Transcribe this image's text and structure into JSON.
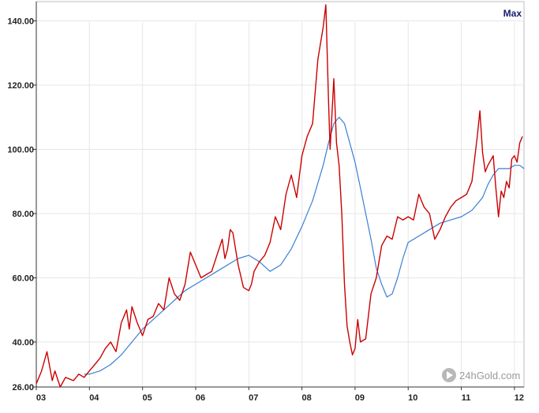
{
  "chart_data": {
    "type": "line",
    "title": "",
    "xlabel": "",
    "ylabel": "",
    "range_label": "Max",
    "watermark": "24hGold.com",
    "grid": true,
    "xlim": [
      2003.0,
      2012.18
    ],
    "ylim": [
      26,
      146
    ],
    "y_ticks": [
      {
        "value": 26,
        "label": "26.00"
      },
      {
        "value": 40,
        "label": "40.00"
      },
      {
        "value": 60,
        "label": "60.00"
      },
      {
        "value": 80,
        "label": "80.00"
      },
      {
        "value": 100,
        "label": "100.00"
      },
      {
        "value": 120,
        "label": "120.00"
      },
      {
        "value": 140,
        "label": "140.00"
      }
    ],
    "x_ticks": [
      {
        "value": 2003,
        "label": "03"
      },
      {
        "value": 2004,
        "label": "04"
      },
      {
        "value": 2005,
        "label": "05"
      },
      {
        "value": 2006,
        "label": "06"
      },
      {
        "value": 2007,
        "label": "07"
      },
      {
        "value": 2008,
        "label": "08"
      },
      {
        "value": 2009,
        "label": "09"
      },
      {
        "value": 2010,
        "label": "10"
      },
      {
        "value": 2011,
        "label": "11"
      },
      {
        "value": 2012,
        "label": "12"
      }
    ],
    "colors": {
      "price": "#cc0000",
      "moving_average": "#3a7fd5",
      "grid": "#e6e6e6",
      "axis": "#333333"
    },
    "series": [
      {
        "key": "price",
        "x": [
          2003.0,
          2003.1,
          2003.2,
          2003.3,
          2003.35,
          2003.45,
          2003.55,
          2003.7,
          2003.8,
          2003.9,
          2004.0,
          2004.1,
          2004.2,
          2004.3,
          2004.4,
          2004.5,
          2004.6,
          2004.7,
          2004.75,
          2004.8,
          2004.9,
          2004.95,
          2005.0,
          2005.1,
          2005.2,
          2005.3,
          2005.4,
          2005.5,
          2005.6,
          2005.7,
          2005.8,
          2005.9,
          2006.0,
          2006.1,
          2006.2,
          2006.3,
          2006.4,
          2006.5,
          2006.55,
          2006.6,
          2006.65,
          2006.7,
          2006.8,
          2006.9,
          2007.0,
          2007.05,
          2007.1,
          2007.2,
          2007.3,
          2007.4,
          2007.5,
          2007.6,
          2007.7,
          2007.8,
          2007.9,
          2008.0,
          2008.1,
          2008.2,
          2008.3,
          2008.4,
          2008.45,
          2008.5,
          2008.53,
          2008.6,
          2008.65,
          2008.7,
          2008.75,
          2008.8,
          2008.85,
          2008.9,
          2008.95,
          2009.0,
          2009.05,
          2009.1,
          2009.2,
          2009.3,
          2009.4,
          2009.5,
          2009.6,
          2009.7,
          2009.8,
          2009.9,
          2010.0,
          2010.1,
          2010.2,
          2010.3,
          2010.4,
          2010.5,
          2010.6,
          2010.7,
          2010.8,
          2010.9,
          2011.0,
          2011.1,
          2011.2,
          2011.25,
          2011.3,
          2011.35,
          2011.4,
          2011.45,
          2011.5,
          2011.6,
          2011.65,
          2011.7,
          2011.75,
          2011.8,
          2011.85,
          2011.9,
          2011.95,
          2012.0,
          2012.05,
          2012.1,
          2012.15
        ],
        "y": [
          27,
          31,
          37,
          28,
          31,
          26,
          29,
          28,
          30,
          29,
          31,
          33,
          35,
          38,
          40,
          37,
          46,
          50,
          44,
          51,
          46,
          44,
          42,
          47,
          48,
          52,
          50,
          60,
          55,
          53,
          58,
          68,
          64,
          60,
          61,
          62,
          67,
          72,
          66,
          69,
          75,
          74,
          64,
          57,
          56,
          58,
          62,
          65,
          67,
          71,
          79,
          75,
          86,
          92,
          85,
          98,
          104,
          108,
          128,
          138,
          145,
          115,
          100,
          122,
          102,
          95,
          80,
          58,
          45,
          40,
          36,
          38,
          47,
          40,
          41,
          55,
          60,
          70,
          73,
          72,
          79,
          78,
          79,
          78,
          86,
          82,
          80,
          72,
          75,
          79,
          82,
          84,
          85,
          86,
          90,
          97,
          104,
          112,
          99,
          93,
          95,
          98,
          88,
          79,
          87,
          85,
          90,
          88,
          97,
          98,
          96,
          102,
          104
        ]
      },
      {
        "key": "moving_average",
        "x": [
          2003.9,
          2004.0,
          2004.2,
          2004.4,
          2004.6,
          2004.8,
          2005.0,
          2005.2,
          2005.4,
          2005.6,
          2005.8,
          2006.0,
          2006.2,
          2006.4,
          2006.6,
          2006.8,
          2007.0,
          2007.2,
          2007.4,
          2007.6,
          2007.8,
          2008.0,
          2008.2,
          2008.4,
          2008.5,
          2008.6,
          2008.7,
          2008.8,
          2008.9,
          2009.0,
          2009.1,
          2009.2,
          2009.3,
          2009.4,
          2009.5,
          2009.6,
          2009.7,
          2009.8,
          2009.9,
          2010.0,
          2010.2,
          2010.4,
          2010.6,
          2010.8,
          2011.0,
          2011.2,
          2011.4,
          2011.5,
          2011.6,
          2011.7,
          2011.8,
          2011.9,
          2012.0,
          2012.1,
          2012.18
        ],
        "y": [
          30,
          30,
          31,
          33,
          36,
          40,
          44,
          47,
          50,
          53,
          56,
          58,
          60,
          62,
          64,
          66,
          67,
          65,
          62,
          64,
          69,
          76,
          84,
          95,
          102,
          108,
          110,
          108,
          102,
          96,
          88,
          80,
          72,
          63,
          58,
          54,
          55,
          60,
          66,
          71,
          73,
          75,
          77,
          78,
          79,
          81,
          85,
          89,
          92,
          94,
          94,
          94,
          95,
          95,
          94
        ]
      }
    ]
  }
}
